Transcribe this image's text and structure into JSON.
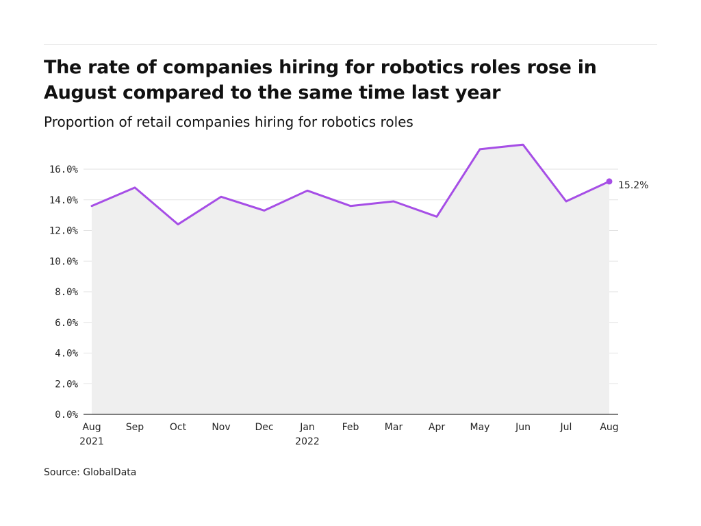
{
  "title": "The rate of companies hiring for robotics roles rose in August compared to the same time last year",
  "subtitle": "Proportion of retail companies hiring for robotics roles",
  "source": "Source: GlobalData",
  "colors": {
    "line": "#a64ee6",
    "area": "#efefef",
    "grid": "#e2e2e2",
    "axis": "#333333"
  },
  "chart_data": {
    "type": "area",
    "title": "The rate of companies hiring for robotics roles rose in August compared to the same time last year",
    "subtitle": "Proportion of retail companies hiring for robotics roles",
    "xlabel": "",
    "ylabel": "",
    "categories": [
      "Aug 2021",
      "Sep",
      "Oct",
      "Nov",
      "Dec",
      "Jan 2022",
      "Feb",
      "Mar",
      "Apr",
      "May",
      "Jun",
      "Jul",
      "Aug"
    ],
    "x_tick_labels": [
      [
        "Aug",
        "2021"
      ],
      [
        "Sep"
      ],
      [
        "Oct"
      ],
      [
        "Nov"
      ],
      [
        "Dec"
      ],
      [
        "Jan",
        "2022"
      ],
      [
        "Feb"
      ],
      [
        "Mar"
      ],
      [
        "Apr"
      ],
      [
        "May"
      ],
      [
        "Jun"
      ],
      [
        "Jul"
      ],
      [
        "Aug"
      ]
    ],
    "values": [
      13.6,
      14.8,
      12.4,
      14.2,
      13.3,
      14.6,
      13.6,
      13.9,
      12.9,
      17.3,
      17.6,
      13.9,
      15.2
    ],
    "ylim": [
      0,
      16
    ],
    "y_ticks": [
      0,
      2,
      4,
      6,
      8,
      10,
      12,
      14,
      16
    ],
    "y_tick_labels": [
      "0.0%",
      "2.0%",
      "4.0%",
      "6.0%",
      "8.0%",
      "10.0%",
      "12.0%",
      "14.0%",
      "16.0%"
    ],
    "end_label": "15.2%",
    "grid": true,
    "legend": "none"
  }
}
